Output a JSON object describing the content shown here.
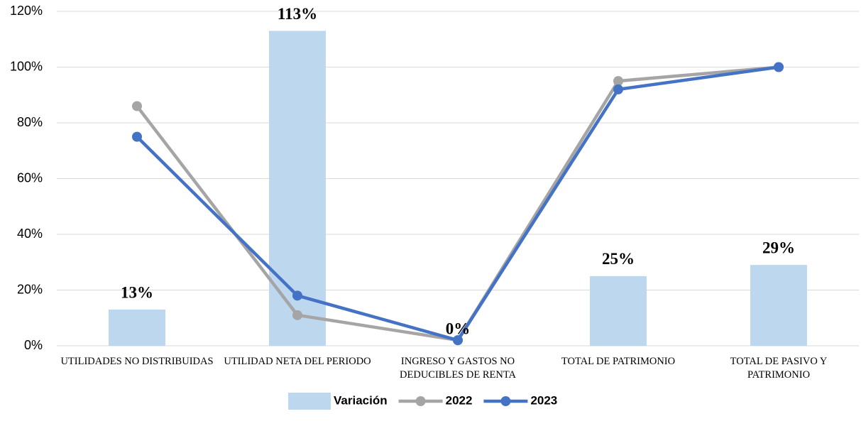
{
  "chart_data": {
    "type": "bar_line",
    "categories": [
      "UTILIDADES NO DISTRIBUIDAS",
      "UTILIDAD NETA DEL PERIODO",
      "INGRESO Y GASTOS NO DEDUCIBLES DE RENTA",
      "TOTAL DE PATRIMONIO",
      "TOTAL DE PASIVO Y PATRIMONIO"
    ],
    "series": [
      {
        "name": "Variación",
        "type": "bar",
        "color": "#bdd7ee",
        "values": [
          13,
          113,
          0,
          25,
          29
        ],
        "value_labels": [
          "13%",
          "113%",
          "0%",
          "25%",
          "29%"
        ]
      },
      {
        "name": "2022",
        "type": "line",
        "color": "#a5a5a5",
        "values": [
          86,
          11,
          2,
          95,
          100
        ]
      },
      {
        "name": "2023",
        "type": "line",
        "color": "#4472c4",
        "values": [
          75,
          18,
          2,
          92,
          100
        ]
      }
    ],
    "ylim": [
      0,
      120
    ],
    "yticks": [
      {
        "value": 0,
        "label": "0%"
      },
      {
        "value": 20,
        "label": "20%"
      },
      {
        "value": 40,
        "label": "40%"
      },
      {
        "value": 60,
        "label": "60%"
      },
      {
        "value": 80,
        "label": "80%"
      },
      {
        "value": 100,
        "label": "100%"
      },
      {
        "value": 120,
        "label": "120%"
      }
    ],
    "grid": true,
    "legend": "bottom"
  }
}
